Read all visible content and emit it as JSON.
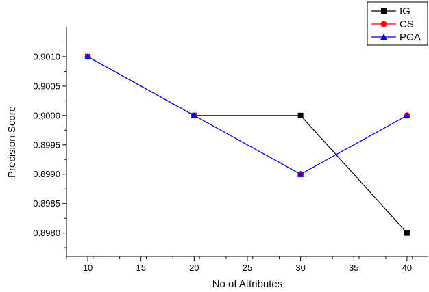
{
  "chart_data": {
    "type": "line",
    "title": "",
    "xlabel": "No of Attributes",
    "ylabel": "Precision Score",
    "x": [
      10,
      20,
      30,
      40
    ],
    "xlim": [
      8,
      42
    ],
    "ylim": [
      0.8976,
      0.9015
    ],
    "xticks": [
      10,
      15,
      20,
      25,
      30,
      35,
      40
    ],
    "yticks": [
      0.898,
      0.8985,
      0.899,
      0.8995,
      0.9,
      0.9005,
      0.901
    ],
    "ytick_labels": [
      "0.8980",
      "0.8985",
      "0.8990",
      "0.8995",
      "0.9000",
      "0.9005",
      "0.9010"
    ],
    "grid": false,
    "legend_position": "top-right",
    "series": [
      {
        "name": "IG",
        "values": [
          0.901,
          0.9,
          0.9,
          0.898
        ],
        "color": "#000000",
        "marker": "square"
      },
      {
        "name": "CS",
        "values": [
          0.901,
          0.9,
          0.899,
          0.9
        ],
        "color": "#ff0000",
        "marker": "circle"
      },
      {
        "name": "PCA",
        "values": [
          0.901,
          0.9,
          0.899,
          0.9
        ],
        "color": "#0000ff",
        "marker": "triangle"
      }
    ]
  }
}
